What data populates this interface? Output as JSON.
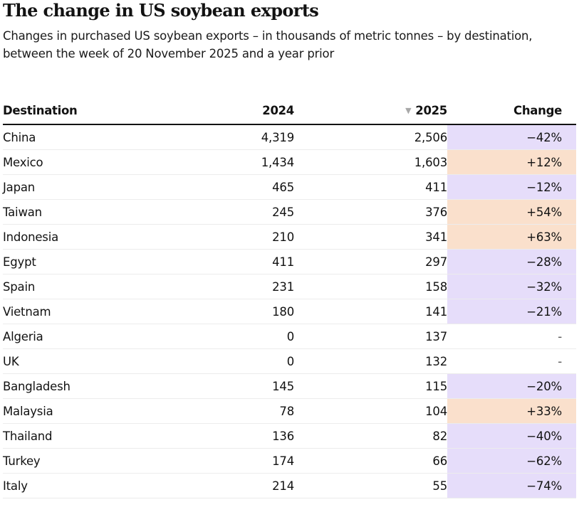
{
  "header": {
    "title": "The change in US soybean exports",
    "subtitle": "Changes in purchased US soybean exports – in thousands of metric tonnes – by destination, between the week of 20 November 2025 and a year prior"
  },
  "colors": {
    "decrease": "#e6ddfa",
    "increase": "#fae0cc",
    "none": "#ffffff"
  },
  "table": {
    "columns": [
      "Destination",
      "2024",
      "2025",
      "Change"
    ],
    "sort_column": "2025",
    "sort_direction": "descending",
    "sort_icon": "sort-descending-triangle-icon"
  },
  "chart_data": {
    "type": "table",
    "title": "The change in US soybean exports",
    "subtitle": "Changes in purchased US soybean exports – in thousands of metric tonnes – by destination, between the week of 20 November 2025 and a year prior",
    "columns": [
      "Destination",
      "2024",
      "2025",
      "Change"
    ],
    "rows": [
      {
        "destination": "China",
        "y2024": "4,319",
        "y2025": "2,506",
        "change": "−42%",
        "direction": "decrease"
      },
      {
        "destination": "Mexico",
        "y2024": "1,434",
        "y2025": "1,603",
        "change": "+12%",
        "direction": "increase"
      },
      {
        "destination": "Japan",
        "y2024": "465",
        "y2025": "411",
        "change": "−12%",
        "direction": "decrease"
      },
      {
        "destination": "Taiwan",
        "y2024": "245",
        "y2025": "376",
        "change": "+54%",
        "direction": "increase"
      },
      {
        "destination": "Indonesia",
        "y2024": "210",
        "y2025": "341",
        "change": "+63%",
        "direction": "increase"
      },
      {
        "destination": "Egypt",
        "y2024": "411",
        "y2025": "297",
        "change": "−28%",
        "direction": "decrease"
      },
      {
        "destination": "Spain",
        "y2024": "231",
        "y2025": "158",
        "change": "−32%",
        "direction": "decrease"
      },
      {
        "destination": "Vietnam",
        "y2024": "180",
        "y2025": "141",
        "change": "−21%",
        "direction": "decrease"
      },
      {
        "destination": "Algeria",
        "y2024": "0",
        "y2025": "137",
        "change": "-",
        "direction": "none"
      },
      {
        "destination": "UK",
        "y2024": "0",
        "y2025": "132",
        "change": "-",
        "direction": "none"
      },
      {
        "destination": "Bangladesh",
        "y2024": "145",
        "y2025": "115",
        "change": "−20%",
        "direction": "decrease"
      },
      {
        "destination": "Malaysia",
        "y2024": "78",
        "y2025": "104",
        "change": "+33%",
        "direction": "increase"
      },
      {
        "destination": "Thailand",
        "y2024": "136",
        "y2025": "82",
        "change": "−40%",
        "direction": "decrease"
      },
      {
        "destination": "Turkey",
        "y2024": "174",
        "y2025": "66",
        "change": "−62%",
        "direction": "decrease"
      },
      {
        "destination": "Italy",
        "y2024": "214",
        "y2025": "55",
        "change": "−74%",
        "direction": "decrease"
      }
    ]
  }
}
